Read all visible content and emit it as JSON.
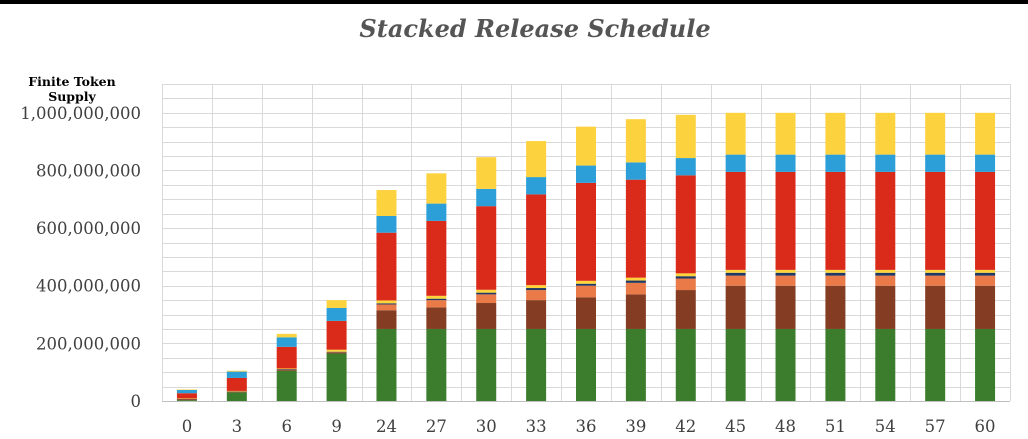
{
  "chart_data": {
    "type": "bar",
    "stacked": true,
    "title": "Stacked Release Schedule",
    "ylabel": "Finite Token Supply",
    "xlabel": "",
    "ylim": [
      0,
      1100000000
    ],
    "grid": true,
    "yticks": [
      0,
      200000000,
      400000000,
      600000000,
      800000000,
      1000000000
    ],
    "ytick_labels": [
      "0",
      "200,000,000",
      "400,000,000",
      "600,000,000",
      "800,000,000",
      "1,000,000,000"
    ],
    "categories": [
      "0",
      "3",
      "6",
      "9",
      "24",
      "27",
      "30",
      "33",
      "36",
      "39",
      "42",
      "45",
      "48",
      "51",
      "54",
      "57",
      "60"
    ],
    "series": [
      {
        "color": "#3b7d2c",
        "values": [
          3000000,
          30000000,
          105000000,
          165000000,
          250000000,
          250000000,
          250000000,
          250000000,
          250000000,
          250000000,
          250000000,
          250000000,
          250000000,
          250000000,
          250000000,
          250000000,
          250000000
        ]
      },
      {
        "color": "#843c22",
        "values": [
          3000000,
          2000000,
          3000000,
          3000000,
          65000000,
          75000000,
          90000000,
          100000000,
          110000000,
          120000000,
          135000000,
          150000000,
          150000000,
          150000000,
          150000000,
          150000000,
          150000000
        ]
      },
      {
        "color": "#ea7a47",
        "values": [
          1000000,
          1000000,
          2000000,
          2000000,
          20000000,
          25000000,
          30000000,
          35000000,
          40000000,
          40000000,
          40000000,
          35000000,
          35000000,
          35000000,
          35000000,
          35000000,
          35000000
        ]
      },
      {
        "color": "#1f3864",
        "values": [
          1000000,
          1000000,
          1000000,
          1000000,
          4000000,
          5000000,
          6000000,
          7000000,
          7000000,
          8000000,
          8000000,
          10000000,
          10000000,
          10000000,
          10000000,
          10000000,
          10000000
        ]
      },
      {
        "color": "#ffd43b",
        "values": [
          1000000,
          1000000,
          2000000,
          7000000,
          10000000,
          10000000,
          10000000,
          10000000,
          10000000,
          10000000,
          10000000,
          10000000,
          10000000,
          10000000,
          10000000,
          10000000,
          10000000
        ]
      },
      {
        "color": "#da2a19",
        "values": [
          18000000,
          45000000,
          75000000,
          100000000,
          235000000,
          260000000,
          290000000,
          315000000,
          340000000,
          340000000,
          340000000,
          340000000,
          340000000,
          340000000,
          340000000,
          340000000,
          340000000
        ]
      },
      {
        "color": "#2c9fd8",
        "values": [
          12000000,
          22000000,
          33000000,
          45000000,
          58000000,
          60000000,
          60000000,
          60000000,
          60000000,
          60000000,
          60000000,
          60000000,
          60000000,
          60000000,
          60000000,
          60000000,
          60000000
        ]
      },
      {
        "color": "#fdd23f",
        "values": [
          1000000,
          3000000,
          12000000,
          27000000,
          90000000,
          105000000,
          110000000,
          125000000,
          135000000,
          150000000,
          150000000,
          145000000,
          145000000,
          145000000,
          145000000,
          145000000,
          145000000
        ]
      }
    ]
  }
}
